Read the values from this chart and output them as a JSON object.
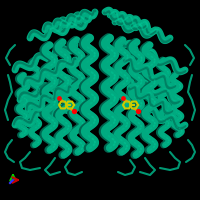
{
  "background_color": "#000000",
  "protein_color_main": "#00aa80",
  "protein_color_dark": "#006650",
  "protein_color_light": "#00cc99",
  "protein_color_mid": "#008866",
  "ligand_color": "#cccc00",
  "ligand_color2": "#ddaa00",
  "axis_x_color": "#cc0000",
  "axis_y_color": "#00cc00",
  "axis_z_color": "#3333ff",
  "figsize": [
    2.0,
    2.0
  ],
  "dpi": 100
}
